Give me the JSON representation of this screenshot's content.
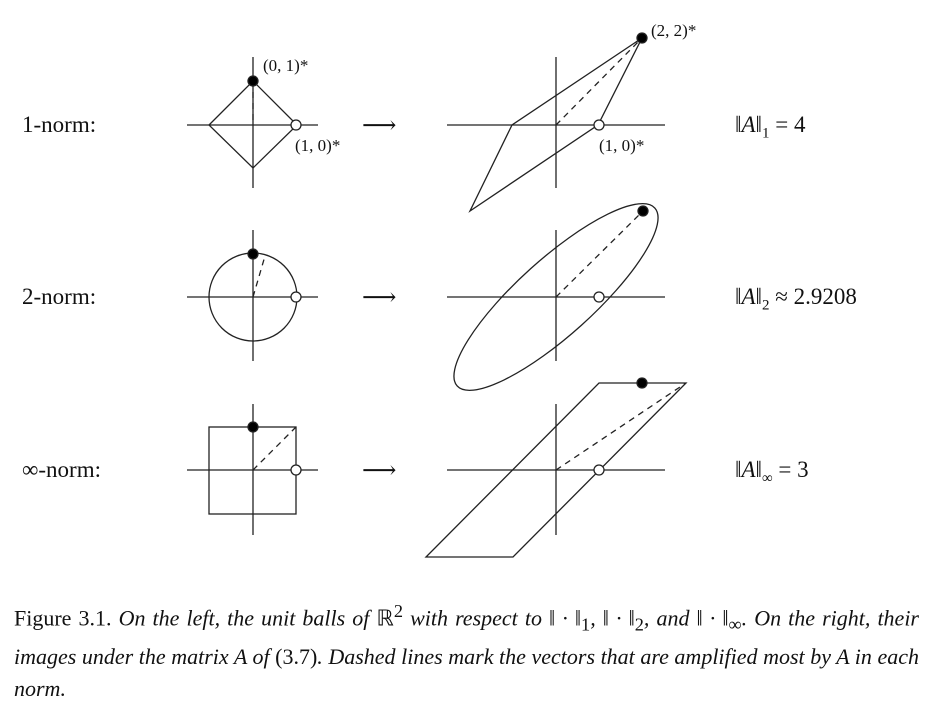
{
  "figure": {
    "rows": [
      {
        "label": "1-norm:",
        "arrow": "⟶",
        "norm_text": "‖A‖",
        "norm_sub": "1",
        "norm_rel": " = 4",
        "points": {
          "top": "(0, 1)*",
          "right": "(1, 0)*",
          "image_top": "(2, 2)*",
          "image_right": "(1, 0)*"
        }
      },
      {
        "label": "2-norm:",
        "arrow": "⟶",
        "norm_text": "‖A‖",
        "norm_sub": "2",
        "norm_rel": " ≈ 2.9208"
      },
      {
        "label": "∞-norm:",
        "arrow": "⟶",
        "norm_text": "‖A‖",
        "norm_sub": "∞",
        "norm_rel": " = 3"
      }
    ]
  },
  "caption": {
    "label": "Figure 3.1.",
    "text_part1": " On the left, the unit balls of ",
    "space": "ℝ",
    "space_exp": "2",
    "text_part2": " with respect to ‖ · ‖",
    "sub1": "1",
    "sep1": ", ‖ · ‖",
    "sub2": "2",
    "sep2": ", and ‖ · ‖",
    "sub3": "∞",
    "text_part3": ". On the right, their images under the matrix A of ",
    "ref": "(3.7)",
    "text_part4": ". Dashed lines mark the vectors that are amplified most by A in each norm."
  }
}
